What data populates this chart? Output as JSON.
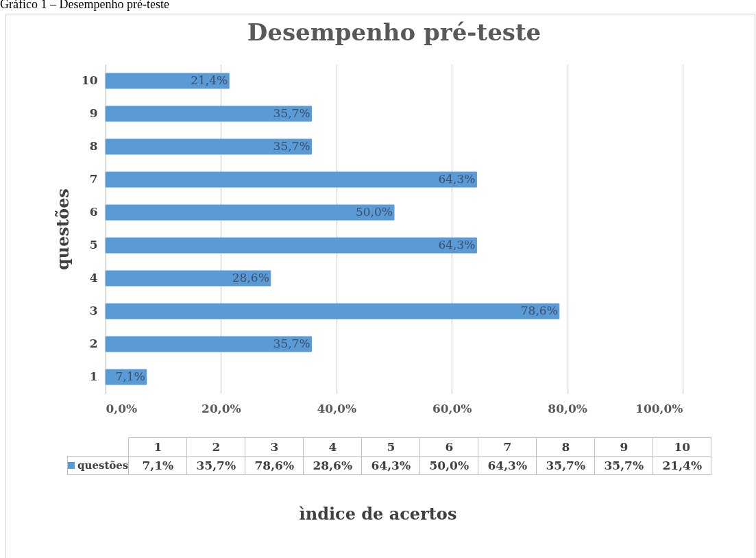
{
  "chart_data": {
    "type": "bar",
    "orientation": "horizontal",
    "title": "Desempenho pré-teste",
    "ylabel": "questões",
    "annotations": [
      "Gráfico 1 – Desempenho pré-teste",
      "ìndice de acertos"
    ],
    "categories": [
      "10",
      "9",
      "8",
      "7",
      "6",
      "5",
      "4",
      "3",
      "2",
      "1"
    ],
    "series": [
      {
        "name": "questões",
        "color": "#5b9bd5",
        "values": [
          21.4,
          35.7,
          35.7,
          64.3,
          50.0,
          64.3,
          28.6,
          78.6,
          35.7,
          7.1
        ],
        "value_labels": [
          "21,4%",
          "35,7%",
          "35,7%",
          "64,3%",
          "50,0%",
          "64,3%",
          "28,6%",
          "78,6%",
          "35,7%",
          "7,1%"
        ]
      }
    ],
    "xlim": [
      0,
      100
    ],
    "xticks": [
      {
        "value": 0,
        "label": "0,0%"
      },
      {
        "value": 20,
        "label": "20,0%"
      },
      {
        "value": 40,
        "label": "40,0%"
      },
      {
        "value": 60,
        "label": "60,0%"
      },
      {
        "value": 80,
        "label": "80,0%"
      },
      {
        "value": 100,
        "label": "100,0%"
      }
    ],
    "grid": "x"
  }
}
